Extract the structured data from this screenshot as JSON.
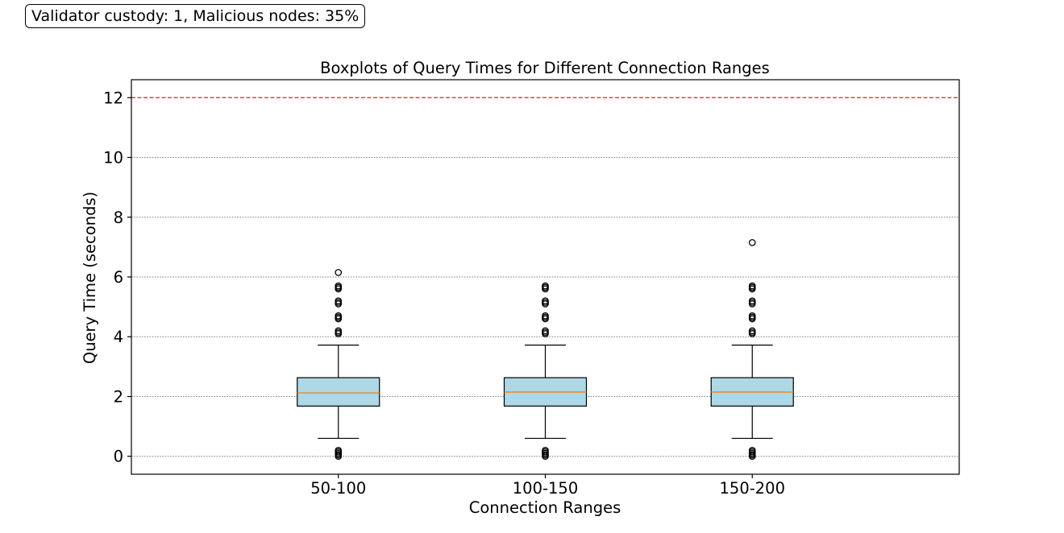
{
  "annotation": "Validator custody: 1, Malicious nodes: 35%",
  "chart_data": {
    "type": "boxplot",
    "title": "Boxplots of Query Times for Different Connection Ranges",
    "xlabel": "Connection Ranges",
    "ylabel": "Query Time (seconds)",
    "ylim": [
      -0.6,
      12.6
    ],
    "yticks": [
      0,
      2,
      4,
      6,
      8,
      10,
      12
    ],
    "grid": "y-dotted",
    "threshold_line": {
      "y": 12,
      "color": "#d62728",
      "style": "dashed"
    },
    "box_color": "#add8e6",
    "median_color": "#ff7f0e",
    "categories": [
      "50-100",
      "100-150",
      "150-200"
    ],
    "boxes": [
      {
        "whisker_low": 0.6,
        "q1": 1.68,
        "median": 2.12,
        "q3": 2.63,
        "whisker_high": 3.72,
        "outliers": [
          0.0,
          0.05,
          0.1,
          0.15,
          0.2,
          4.1,
          4.15,
          4.2,
          4.6,
          4.65,
          4.7,
          5.1,
          5.15,
          5.2,
          5.6,
          5.65,
          5.7,
          6.15
        ]
      },
      {
        "whisker_low": 0.6,
        "q1": 1.68,
        "median": 2.15,
        "q3": 2.63,
        "whisker_high": 3.72,
        "outliers": [
          0.0,
          0.05,
          0.1,
          0.15,
          0.2,
          4.1,
          4.15,
          4.2,
          4.6,
          4.65,
          4.7,
          5.1,
          5.15,
          5.2,
          5.6,
          5.65,
          5.7
        ]
      },
      {
        "whisker_low": 0.6,
        "q1": 1.68,
        "median": 2.15,
        "q3": 2.63,
        "whisker_high": 3.72,
        "outliers": [
          0.0,
          0.05,
          0.1,
          0.15,
          0.2,
          4.1,
          4.15,
          4.2,
          4.6,
          4.65,
          4.7,
          5.1,
          5.15,
          5.2,
          5.6,
          5.65,
          5.7,
          7.15
        ]
      }
    ]
  }
}
